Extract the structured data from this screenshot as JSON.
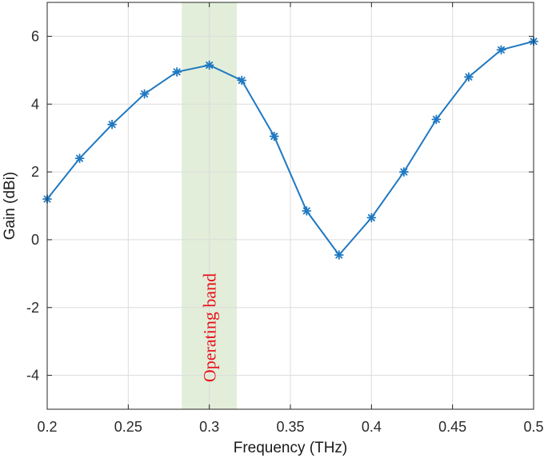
{
  "chart_data": {
    "type": "line",
    "title": "",
    "xlabel": "Frequency (THz)",
    "ylabel": "Gain (dBi)",
    "xlim": [
      0.2,
      0.5
    ],
    "ylim": [
      -5,
      7
    ],
    "x_ticks": [
      0.2,
      0.25,
      0.3,
      0.35,
      0.4,
      0.45,
      0.5
    ],
    "x_tick_labels": [
      "0.2",
      "0.25",
      "0.3",
      "0.35",
      "0.4",
      "0.45",
      "0.5"
    ],
    "y_ticks": [
      -4,
      -2,
      0,
      2,
      4,
      6
    ],
    "y_tick_labels": [
      "-4",
      "-2",
      "0",
      "2",
      "4",
      "6"
    ],
    "grid": true,
    "series": [
      {
        "marker": "asterisk",
        "color": "#1f78c1",
        "x": [
          0.2,
          0.22,
          0.24,
          0.26,
          0.28,
          0.3,
          0.32,
          0.34,
          0.36,
          0.38,
          0.4,
          0.42,
          0.44,
          0.46,
          0.48,
          0.5
        ],
        "y": [
          1.2,
          2.4,
          3.4,
          4.3,
          4.95,
          5.15,
          4.7,
          3.05,
          0.85,
          -0.45,
          0.65,
          2.0,
          3.55,
          4.8,
          5.6,
          5.85
        ]
      }
    ],
    "shaded_region": {
      "x_start": 0.283,
      "x_end": 0.317,
      "color": "#e2eed9",
      "label": "Operating band",
      "label_color": "#e8111b"
    }
  }
}
